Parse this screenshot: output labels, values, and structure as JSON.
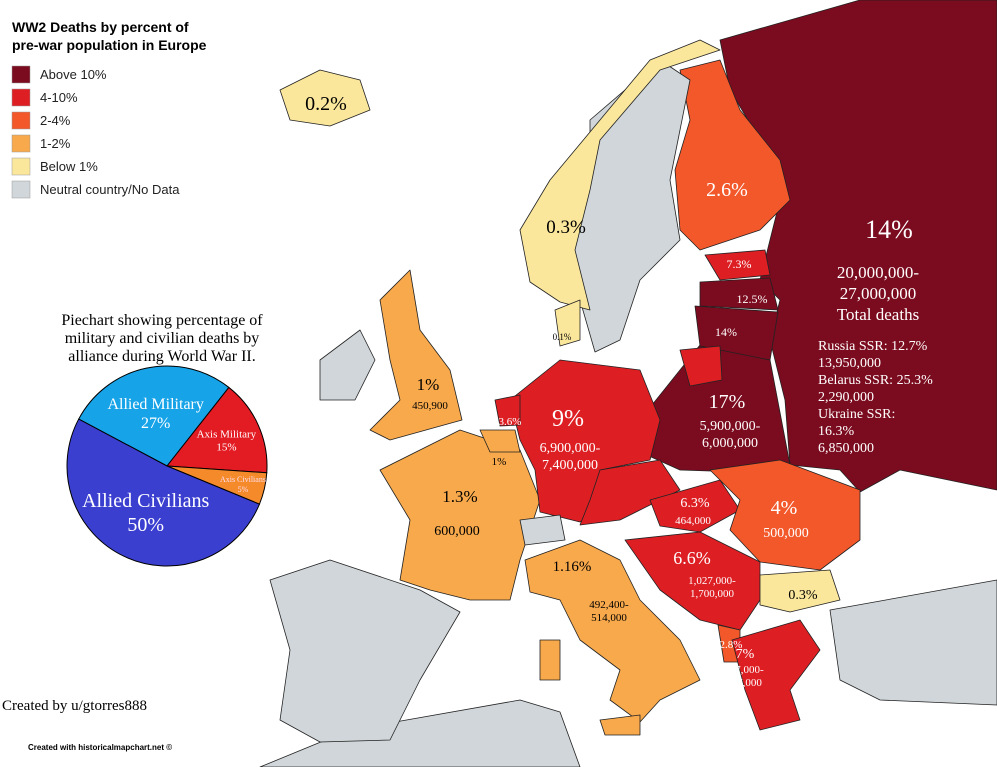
{
  "title": [
    "WW2 Deaths by percent of",
    "pre-war population in Europe"
  ],
  "legend": [
    {
      "label": "Above 10%",
      "color": "#7b0b1e"
    },
    {
      "label": "4-10%",
      "color": "#dd1f24"
    },
    {
      "label": "2-4%",
      "color": "#f3582b"
    },
    {
      "label": "1-2%",
      "color": "#f7a94b"
    },
    {
      "label": "Below 1%",
      "color": "#fbe79c"
    },
    {
      "label": "Neutral country/No Data",
      "color": "#d0d6d9"
    }
  ],
  "map_labels": [
    {
      "lines": [
        "0.2%"
      ]
    },
    {
      "lines": [
        "0.3%"
      ]
    },
    {
      "lines": [
        "2.6%"
      ]
    },
    {
      "lines": [
        "14%"
      ]
    },
    {
      "lines": [
        "20,000,000-",
        "27,000,000",
        "Total deaths"
      ]
    },
    {
      "lines": [
        "7.3%"
      ]
    },
    {
      "lines": [
        "12.5%"
      ]
    },
    {
      "lines": [
        "14%"
      ]
    },
    {
      "lines": [
        "Russia SSR: 12.7%",
        "13,950,000",
        "Belarus SSR: 25.3%",
        "2,290,000",
        "Ukraine SSR:",
        "16.3%",
        "6,850,000"
      ]
    },
    {
      "lines": [
        "17%"
      ]
    },
    {
      "lines": [
        "5,900,000-",
        "6,000,000"
      ]
    },
    {
      "lines": [
        "9%"
      ]
    },
    {
      "lines": [
        "6,900,000-",
        "7,400,000"
      ]
    },
    {
      "lines": [
        "1%"
      ]
    },
    {
      "lines": [
        "450,900"
      ]
    },
    {
      "lines": [
        "3.6%"
      ]
    },
    {
      "lines": [
        "1%"
      ]
    },
    {
      "lines": [
        "1.3%"
      ]
    },
    {
      "lines": [
        "600,000"
      ]
    },
    {
      "lines": [
        "6.3%"
      ]
    },
    {
      "lines": [
        "464,000"
      ]
    },
    {
      "lines": [
        "4%"
      ]
    },
    {
      "lines": [
        "500,000"
      ]
    },
    {
      "lines": [
        "1.16%"
      ]
    },
    {
      "lines": [
        "6.6%"
      ]
    },
    {
      "lines": [
        "1,027,000-",
        "1,700,000"
      ]
    },
    {
      "lines": [
        "0.3%"
      ]
    },
    {
      "lines": [
        "492,400-",
        "514,000"
      ]
    },
    {
      "lines": [
        "2.8%"
      ]
    },
    {
      "lines": [
        "7%"
      ]
    },
    {
      "lines": [
        "507,000-",
        "807,000"
      ]
    },
    {
      "lines": [
        "0.1%"
      ]
    }
  ],
  "chart_data": {
    "type": "pie",
    "title": [
      "Piechart showing percentage of",
      "military and civilian deaths by",
      "alliance during World War II."
    ],
    "categories": [
      "Allied Military",
      "Axis Military",
      "Axis Civilians",
      "Allied Civilians"
    ],
    "values": [
      27,
      15,
      5,
      50
    ],
    "value_labels": [
      "27%",
      "15%",
      "5%",
      "50%"
    ],
    "colors": [
      "#16a3e8",
      "#e31b23",
      "#f58a2a",
      "#3b3fd0"
    ]
  },
  "credit": "Created by u/gtorres888",
  "footer": "Created with historicalmapchart.net ©"
}
